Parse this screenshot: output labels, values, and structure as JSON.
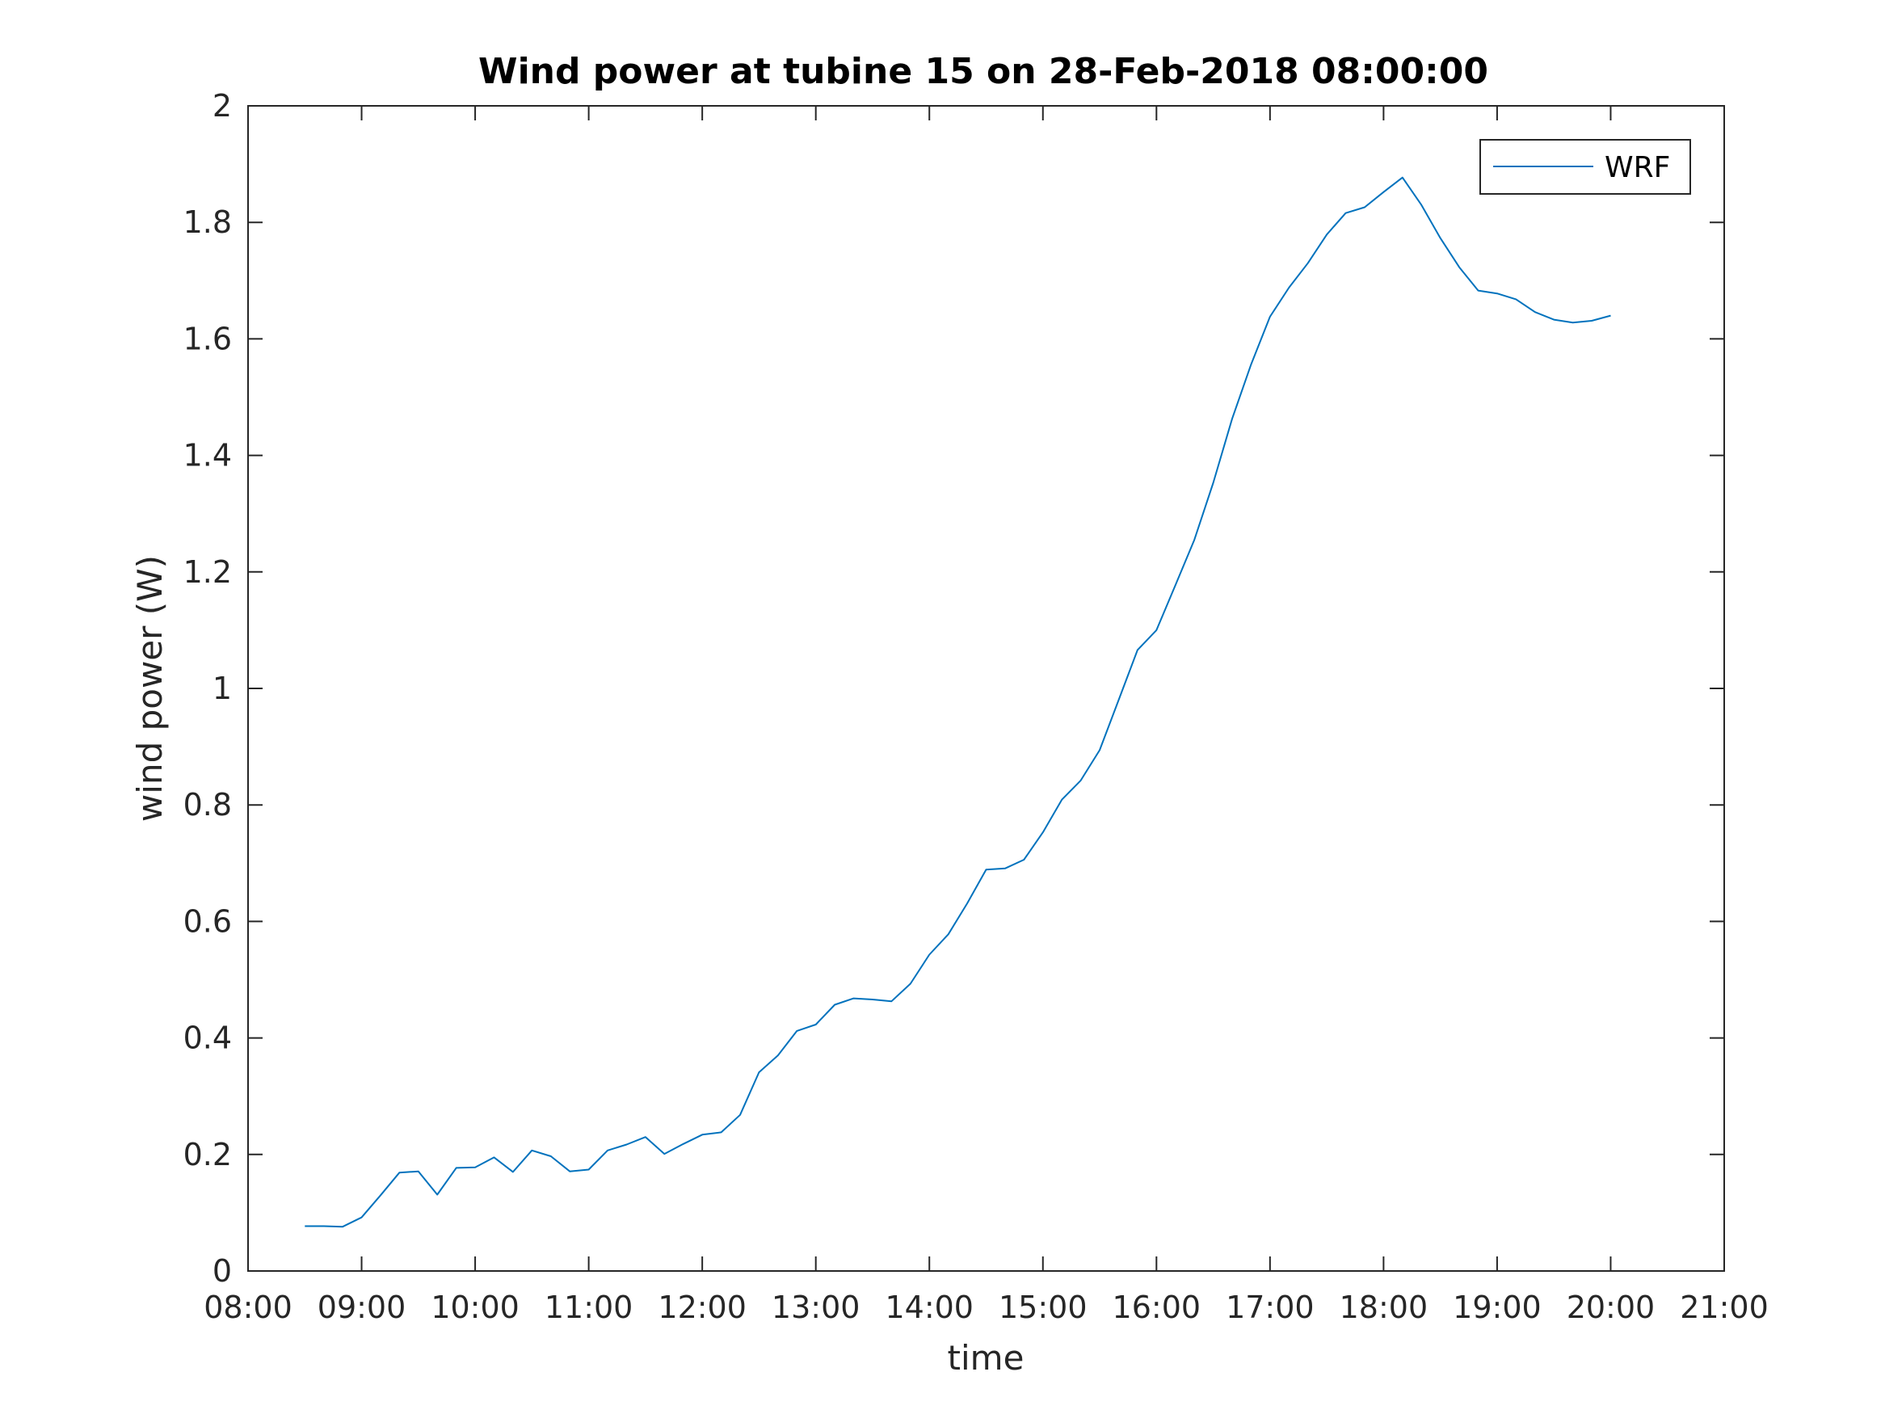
{
  "chart_data": {
    "type": "line",
    "title": "Wind power at tubine 15 on 28-Feb-2018 08:00:00",
    "xlabel": "time",
    "ylabel": "wind power (W)",
    "xlim": [
      "08:00",
      "21:00"
    ],
    "ylim": [
      0,
      2
    ],
    "x_ticks": [
      "08:00",
      "09:00",
      "10:00",
      "11:00",
      "12:00",
      "13:00",
      "14:00",
      "15:00",
      "16:00",
      "17:00",
      "18:00",
      "19:00",
      "20:00",
      "21:00"
    ],
    "y_ticks": [
      "0",
      "0.2",
      "0.4",
      "0.6",
      "0.8",
      "1",
      "1.2",
      "1.4",
      "1.6",
      "1.8",
      "2"
    ],
    "grid": false,
    "legend_position": "top-right",
    "series": [
      {
        "name": "WRF",
        "color": "#0072BD",
        "x": [
          "08:30",
          "08:40",
          "08:50",
          "09:00",
          "09:10",
          "09:20",
          "09:30",
          "09:40",
          "09:50",
          "10:00",
          "10:10",
          "10:20",
          "10:30",
          "10:40",
          "10:50",
          "11:00",
          "11:10",
          "11:20",
          "11:30",
          "11:40",
          "11:50",
          "12:00",
          "12:10",
          "12:20",
          "12:30",
          "12:40",
          "12:50",
          "13:00",
          "13:10",
          "13:20",
          "13:30",
          "13:40",
          "13:50",
          "14:00",
          "14:10",
          "14:20",
          "14:30",
          "14:40",
          "14:50",
          "15:00",
          "15:10",
          "15:20",
          "15:30",
          "15:40",
          "15:50",
          "16:00",
          "16:10",
          "16:20",
          "16:30",
          "16:40",
          "16:50",
          "17:00",
          "17:10",
          "17:20",
          "17:30",
          "17:40",
          "17:50",
          "18:00",
          "18:10",
          "18:20",
          "18:30",
          "18:40",
          "18:50",
          "19:00",
          "19:10",
          "19:20",
          "19:30",
          "19:40",
          "19:50",
          "20:00"
        ],
        "y": [
          0.077,
          0.077,
          0.076,
          0.092,
          0.13,
          0.169,
          0.171,
          0.131,
          0.177,
          0.178,
          0.195,
          0.17,
          0.207,
          0.197,
          0.171,
          0.174,
          0.207,
          0.217,
          0.23,
          0.201,
          0.218,
          0.234,
          0.238,
          0.268,
          0.341,
          0.37,
          0.412,
          0.423,
          0.457,
          0.468,
          0.466,
          0.463,
          0.493,
          0.543,
          0.578,
          0.631,
          0.689,
          0.691,
          0.706,
          0.753,
          0.809,
          0.842,
          0.894,
          0.98,
          1.066,
          1.1,
          1.177,
          1.255,
          1.353,
          1.463,
          1.556,
          1.638,
          1.688,
          1.73,
          1.779,
          1.816,
          1.826,
          1.852,
          1.877,
          1.83,
          1.773,
          1.723,
          1.683,
          1.678,
          1.668,
          1.646,
          1.633,
          1.628,
          1.631,
          1.64
        ]
      }
    ]
  }
}
